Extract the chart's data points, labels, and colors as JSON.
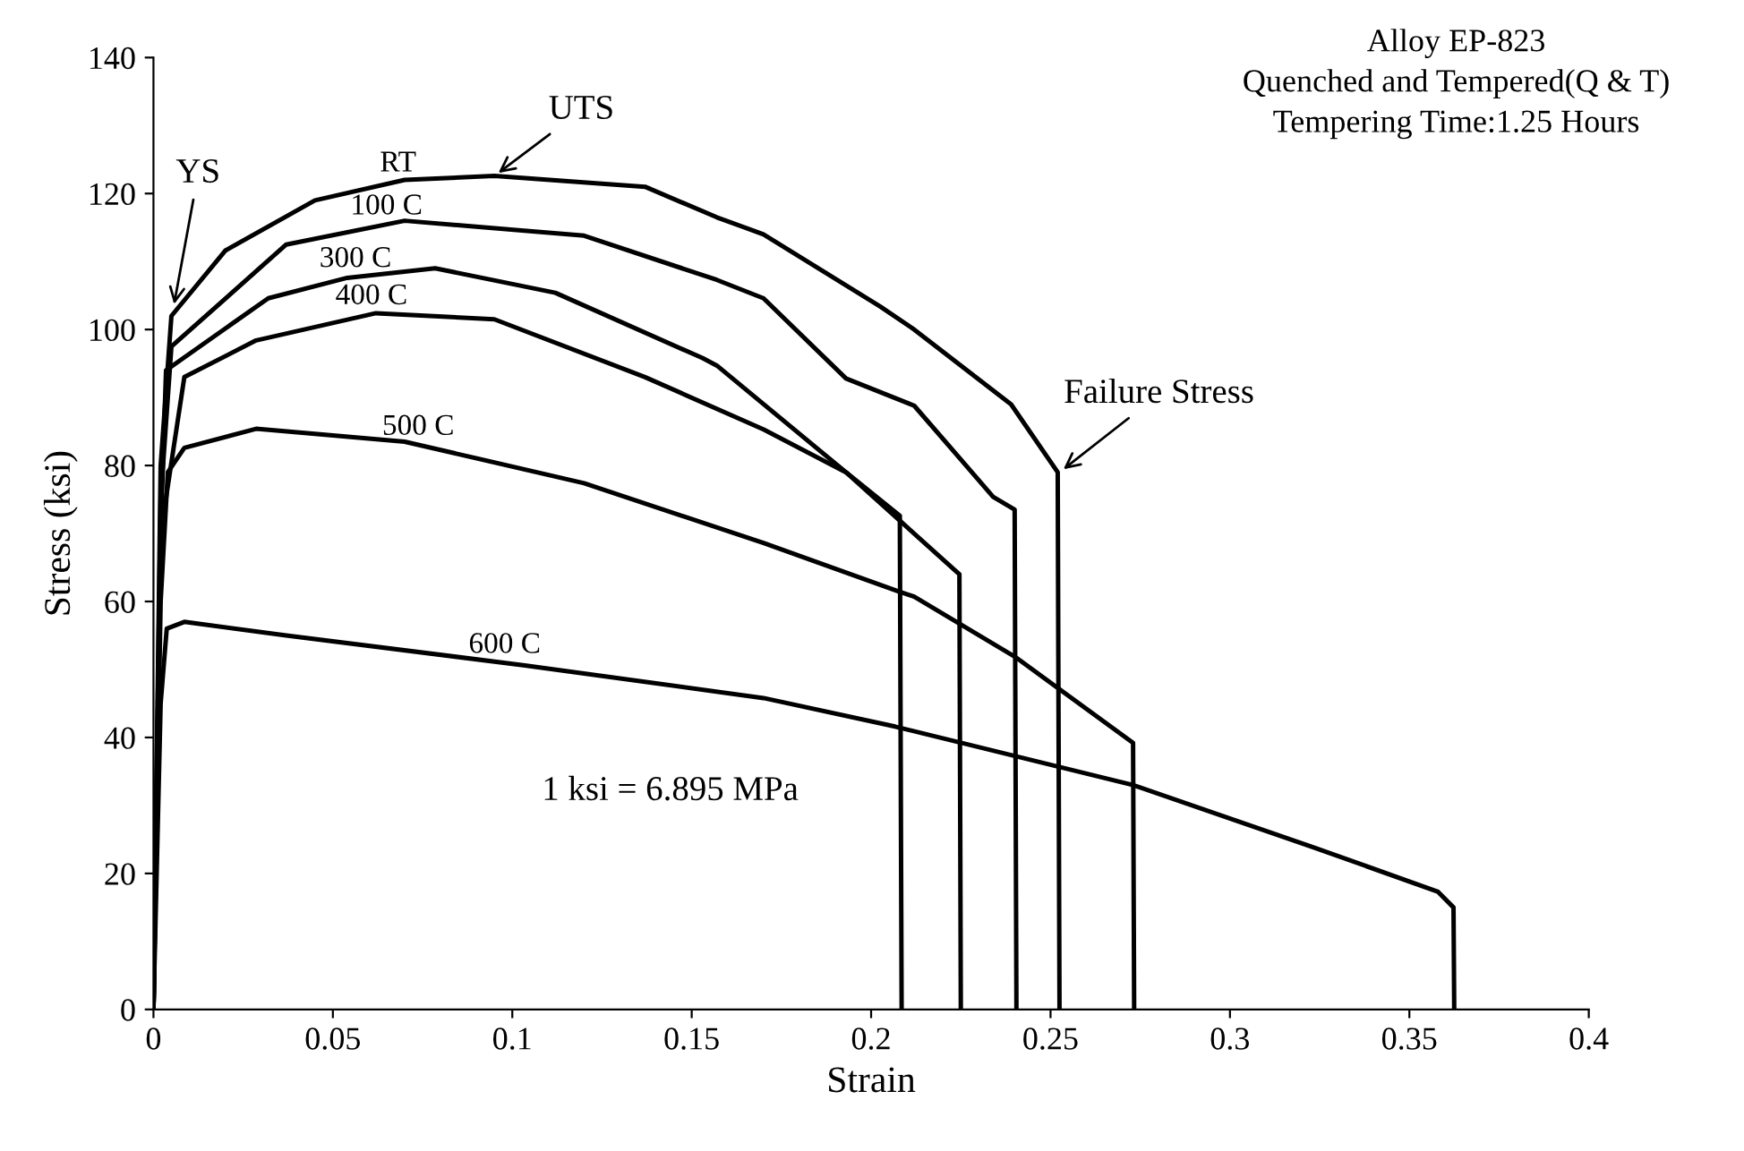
{
  "chart_data": {
    "type": "line",
    "title": "Alloy EP-823",
    "subtitle": "Quenched and Tempered(Q & T)\nTempering Time:1.25 Hours",
    "xlabel": "Strain",
    "ylabel": "Stress (ksi)",
    "xlim": [
      0,
      0.4
    ],
    "xticks": [
      0,
      0.05,
      0.1,
      0.15,
      0.2,
      0.25,
      0.3,
      0.35,
      0.4
    ],
    "ylim": [
      0,
      140
    ],
    "yticks": [
      0,
      20,
      40,
      60,
      80,
      100,
      120,
      140
    ],
    "grid": false,
    "legend": false,
    "marker": "none",
    "line_style": "solid",
    "series": [
      {
        "name": "RT",
        "color": "#000000",
        "x": [
          0,
          0.002,
          0.005,
          0.02,
          0.045,
          0.07,
          0.095,
          0.137,
          0.157,
          0.17,
          0.2025,
          0.212,
          0.239,
          0.252,
          0.2525
        ],
        "values": [
          0,
          80,
          102,
          111.6,
          119,
          122,
          122.6,
          121,
          116.5,
          114,
          103.4,
          100,
          89,
          79,
          0
        ]
      },
      {
        "name": "100 C",
        "color": "#000000",
        "x": [
          0,
          0.002,
          0.005,
          0.037,
          0.07,
          0.12,
          0.157,
          0.17,
          0.193,
          0.212,
          0.234,
          0.24,
          0.2405
        ],
        "values": [
          0,
          75,
          97.5,
          112.5,
          116,
          113.8,
          107.3,
          104.6,
          92.8,
          88.8,
          75.4,
          73.5,
          0
        ]
      },
      {
        "name": "300 C",
        "color": "#000000",
        "x": [
          0,
          0.002,
          0.0035,
          0.032,
          0.054,
          0.0785,
          0.112,
          0.153,
          0.157,
          0.193,
          0.208,
          0.2085
        ],
        "values": [
          0,
          70,
          94,
          104.6,
          107.6,
          109,
          105.4,
          95.8,
          94.7,
          79,
          72.6,
          0
        ]
      },
      {
        "name": "400 C",
        "color": "#000000",
        "x": [
          0,
          0.002,
          0.0086,
          0.0286,
          0.062,
          0.095,
          0.137,
          0.17,
          0.193,
          0.2246,
          0.225
        ],
        "values": [
          0,
          70,
          93,
          98.4,
          102.4,
          101.5,
          93,
          85.3,
          79,
          64,
          0
        ]
      },
      {
        "name": "500 C",
        "color": "#000000",
        "x": [
          0,
          0.002,
          0.004,
          0.0086,
          0.0286,
          0.07,
          0.12,
          0.17,
          0.207,
          0.212,
          0.24,
          0.273,
          0.2733
        ],
        "values": [
          0,
          60,
          79,
          82.6,
          85.4,
          83.5,
          77.4,
          68.6,
          61.6,
          60.7,
          51.9,
          39.2,
          0
        ]
      },
      {
        "name": "600 C",
        "color": "#000000",
        "x": [
          0,
          0.002,
          0.0037,
          0.0086,
          0.037,
          0.1035,
          0.17,
          0.2067,
          0.273,
          0.323,
          0.358,
          0.3623,
          0.3625
        ],
        "values": [
          0,
          45,
          56,
          57,
          55,
          50.6,
          45.8,
          41.6,
          33,
          23.9,
          17.3,
          15,
          0
        ]
      }
    ],
    "annotations": [
      {
        "text": "YS",
        "x": 0.0055,
        "y": 103
      },
      {
        "text": "UTS",
        "x": 0.095,
        "y": 122.6
      },
      {
        "text": "Failure Stress",
        "x": 0.2525,
        "y": 79
      },
      "1 ksi = 6.895 MPa"
    ]
  }
}
